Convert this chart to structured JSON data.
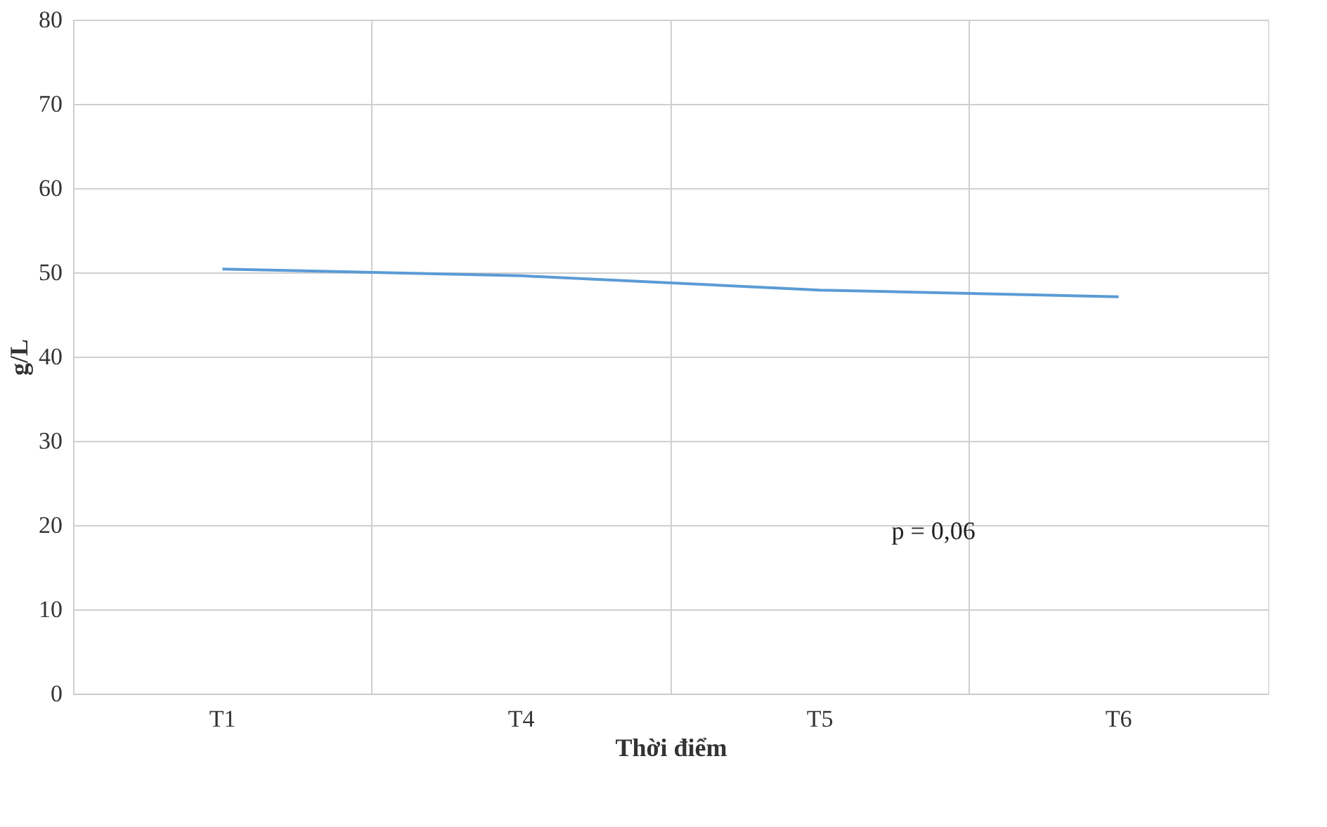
{
  "chart_data": {
    "type": "line",
    "xlabel": "Thời điểm",
    "ylabel": "g/L",
    "categories": [
      "T1",
      "T4",
      "T5",
      "T6"
    ],
    "series": [
      {
        "color": "#5b9bd5",
        "values": [
          50.4,
          49.6,
          47.9,
          47.1
        ]
      }
    ],
    "ylim": [
      0,
      80
    ],
    "yticks": [
      0,
      10,
      20,
      30,
      40,
      50,
      60,
      70,
      80
    ],
    "grid": true,
    "marker": "none",
    "line_style": "solid",
    "annotations": [
      "p = 0,06"
    ]
  }
}
